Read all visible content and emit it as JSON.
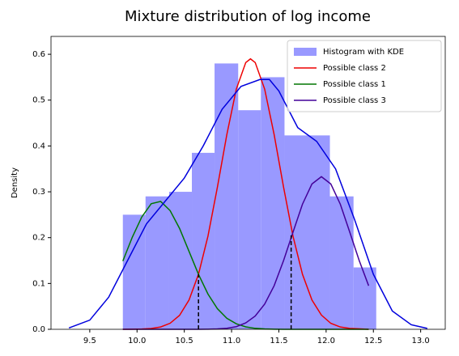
{
  "chart_data": {
    "type": "histogram",
    "title": "Mixture distribution of log income",
    "ylabel": "Density",
    "xlim": [
      9.09,
      13.26
    ],
    "ylim": [
      0,
      0.639
    ],
    "xticks": [
      9.5,
      10.0,
      10.5,
      11.0,
      11.5,
      12.0,
      12.5,
      13.0
    ],
    "yticks": [
      0.0,
      0.1,
      0.2,
      0.3,
      0.4,
      0.5,
      0.6
    ],
    "legend": "upper right",
    "histogram": {
      "name": "Histogram with KDE",
      "color": "#9999ff",
      "bins": [
        9.85,
        10.09,
        10.34,
        10.58,
        10.82,
        11.07,
        11.31,
        11.56,
        11.8,
        12.04,
        12.29,
        12.53
      ],
      "counts": [
        0.25,
        0.29,
        0.3,
        0.385,
        0.58,
        0.478,
        0.55,
        0.423,
        0.423,
        0.29,
        0.135
      ]
    },
    "kde": {
      "color": "#0000dd",
      "x": [
        9.28,
        9.5,
        9.7,
        9.9,
        10.1,
        10.3,
        10.5,
        10.7,
        10.9,
        11.1,
        11.3,
        11.4,
        11.5,
        11.7,
        11.9,
        12.1,
        12.3,
        12.5,
        12.7,
        12.9,
        13.07
      ],
      "values": [
        0.003,
        0.02,
        0.07,
        0.15,
        0.23,
        0.28,
        0.33,
        0.4,
        0.48,
        0.53,
        0.545,
        0.545,
        0.52,
        0.44,
        0.41,
        0.35,
        0.24,
        0.12,
        0.04,
        0.01,
        0.002
      ]
    },
    "series": [
      {
        "name": "Possible class 2",
        "color": "#ee0000",
        "x": [
          9.85,
          9.95,
          10.05,
          10.15,
          10.25,
          10.35,
          10.45,
          10.55,
          10.65,
          10.75,
          10.85,
          10.95,
          11.05,
          11.15,
          11.2,
          11.25,
          11.35,
          11.45,
          11.55,
          11.65,
          11.75,
          11.85,
          11.95,
          12.05,
          12.15,
          12.25,
          12.35,
          12.45
        ],
        "values": [
          0.0,
          0.0002,
          0.0006,
          0.0018,
          0.0051,
          0.0132,
          0.0305,
          0.0639,
          0.12,
          0.203,
          0.31,
          0.425,
          0.524,
          0.582,
          0.59,
          0.582,
          0.524,
          0.425,
          0.31,
          0.203,
          0.12,
          0.064,
          0.031,
          0.013,
          0.005,
          0.002,
          0.001,
          0.0
        ]
      },
      {
        "name": "Possible class 1",
        "color": "#007700",
        "x": [
          9.85,
          9.95,
          10.05,
          10.15,
          10.25,
          10.35,
          10.45,
          10.55,
          10.65,
          10.75,
          10.85,
          10.95,
          11.05,
          11.15,
          11.25,
          11.35,
          11.45,
          11.55,
          11.65,
          11.75,
          11.85,
          11.95,
          12.05,
          12.15,
          12.25,
          12.35,
          12.45
        ],
        "values": [
          0.149,
          0.201,
          0.245,
          0.274,
          0.279,
          0.259,
          0.22,
          0.17,
          0.12,
          0.077,
          0.045,
          0.024,
          0.012,
          0.0053,
          0.0021,
          0.0008,
          0.0003,
          0.0,
          0.0,
          0.0,
          0.0,
          0.0,
          0.0,
          0.0,
          0.0,
          0.0,
          0.0
        ]
      },
      {
        "name": "Possible class 3",
        "color": "#440099",
        "x": [
          9.85,
          9.95,
          10.05,
          10.15,
          10.25,
          10.35,
          10.45,
          10.55,
          10.65,
          10.75,
          10.85,
          10.95,
          11.05,
          11.15,
          11.25,
          11.35,
          11.45,
          11.55,
          11.65,
          11.75,
          11.85,
          11.95,
          12.05,
          12.15,
          12.25,
          12.35,
          12.45
        ],
        "values": [
          0.0,
          0.0,
          0.0,
          0.0,
          0.0,
          0.0,
          0.0,
          0.0,
          0.0,
          0.0002,
          0.0008,
          0.0022,
          0.0058,
          0.014,
          0.029,
          0.055,
          0.095,
          0.15,
          0.212,
          0.273,
          0.317,
          0.333,
          0.317,
          0.273,
          0.212,
          0.15,
          0.095
        ]
      }
    ],
    "vlines": [
      {
        "x": 10.65,
        "y": 0.12
      },
      {
        "x": 11.63,
        "y": 0.205
      }
    ]
  }
}
